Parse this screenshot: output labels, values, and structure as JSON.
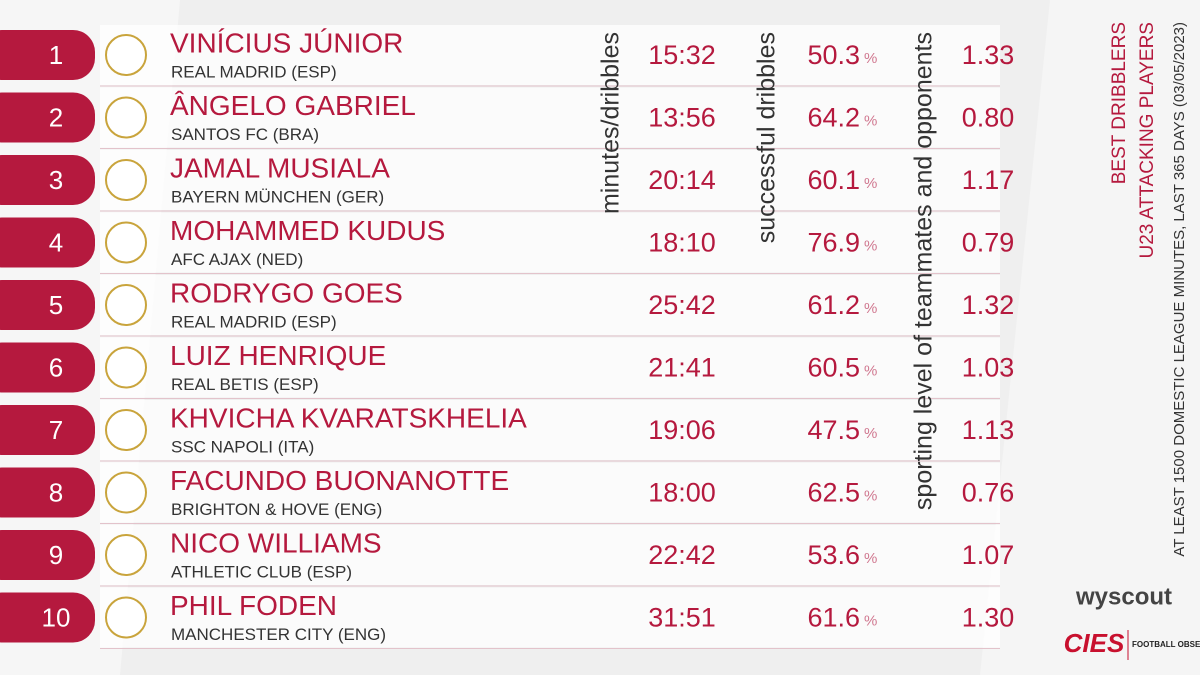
{
  "header": {
    "title": "BEST DRIBBLERS",
    "subtitle": "U23 ATTACKING PLAYERS",
    "note": "AT LEAST 1500 DOMESTIC LEAGUE MINUTES, LAST 365 DAYS (03/05/2023)"
  },
  "columns": {
    "minutes_per_dribble": "minutes/dribbles",
    "success": "successful dribbles",
    "level": "sporting level of teammates and opponents"
  },
  "percent_symbol": "%",
  "table": {
    "rows": [
      {
        "rank": 1,
        "player": "VINÍCIUS JÚNIOR",
        "club": "REAL MADRID (ESP)",
        "minutes_per_dribble": "15:32",
        "success": "50.3",
        "level": "1.33"
      },
      {
        "rank": 2,
        "player": "ÂNGELO GABRIEL",
        "club": "SANTOS FC (BRA)",
        "minutes_per_dribble": "13:56",
        "success": "64.2",
        "level": "0.80"
      },
      {
        "rank": 3,
        "player": "JAMAL MUSIALA",
        "club": "BAYERN MÜNCHEN (GER)",
        "minutes_per_dribble": "20:14",
        "success": "60.1",
        "level": "1.17"
      },
      {
        "rank": 4,
        "player": "MOHAMMED KUDUS",
        "club": "AFC AJAX (NED)",
        "minutes_per_dribble": "18:10",
        "success": "76.9",
        "level": "0.79"
      },
      {
        "rank": 5,
        "player": "RODRYGO GOES",
        "club": "REAL MADRID (ESP)",
        "minutes_per_dribble": "25:42",
        "success": "61.2",
        "level": "1.32"
      },
      {
        "rank": 6,
        "player": "LUIZ HENRIQUE",
        "club": "REAL BETIS (ESP)",
        "minutes_per_dribble": "21:41",
        "success": "60.5",
        "level": "1.03"
      },
      {
        "rank": 7,
        "player": "KHVICHA KVARATSKHELIA",
        "club": "SSC NAPOLI (ITA)",
        "minutes_per_dribble": "19:06",
        "success": "47.5",
        "level": "1.13"
      },
      {
        "rank": 8,
        "player": "FACUNDO BUONANOTTE",
        "club": "BRIGHTON & HOVE (ENG)",
        "minutes_per_dribble": "18:00",
        "success": "62.5",
        "level": "0.76"
      },
      {
        "rank": 9,
        "player": "NICO WILLIAMS",
        "club": "ATHLETIC CLUB (ESP)",
        "minutes_per_dribble": "22:42",
        "success": "53.6",
        "level": "1.07"
      },
      {
        "rank": 10,
        "player": "PHIL FODEN",
        "club": "MANCHESTER CITY (ENG)",
        "minutes_per_dribble": "31:51",
        "success": "61.6",
        "level": "1.30"
      }
    ]
  },
  "branding": {
    "data_provider": "wyscout",
    "publisher": "CIES",
    "publisher_sub": "FOOTBALL OBSERVATORY"
  }
}
